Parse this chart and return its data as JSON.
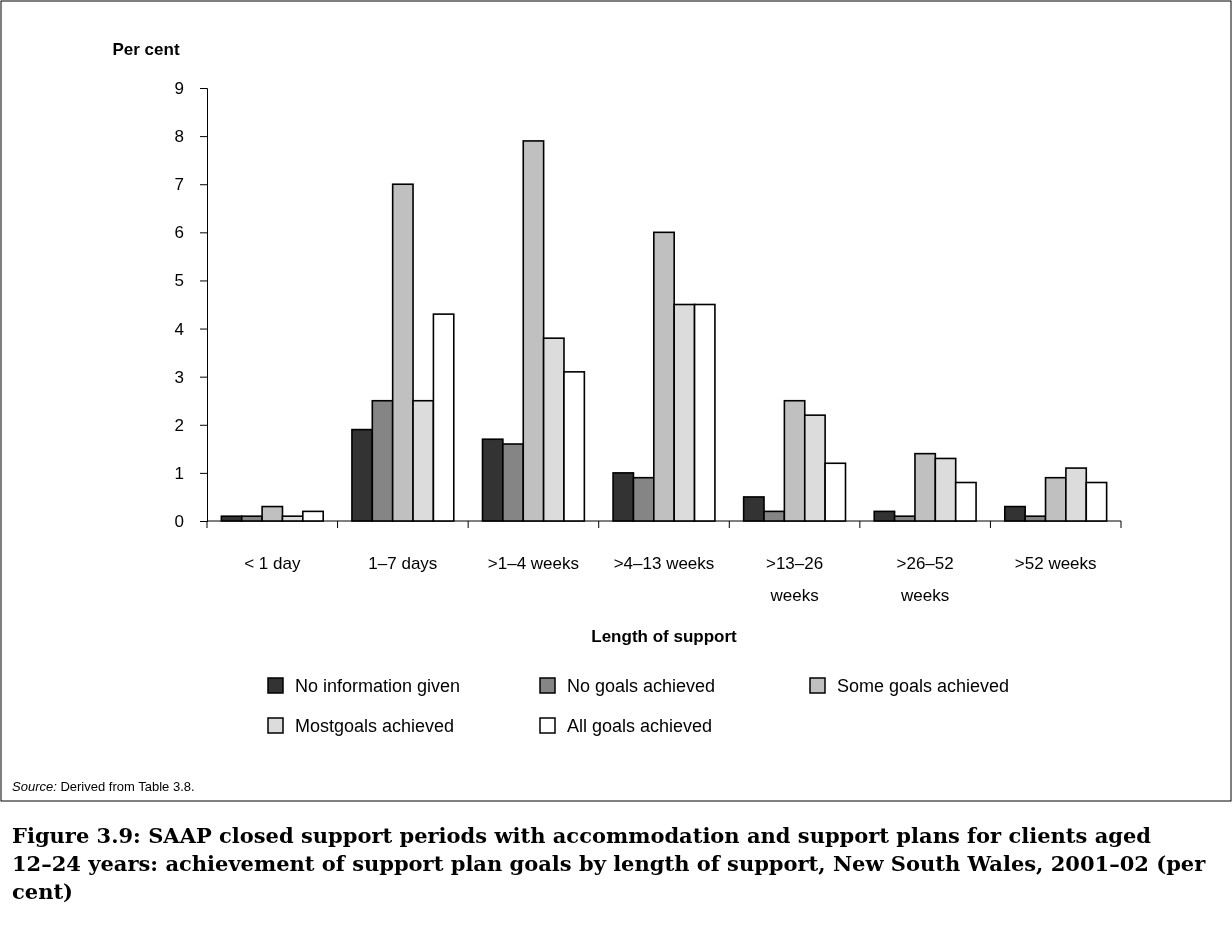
{
  "chart_data": {
    "type": "bar",
    "ylabel": "Per cent",
    "xlabel": "Length of support",
    "title": "Figure 3.9: SAAP closed support periods with accommodation and support plans for clients aged 12–24 years: achievement of support plan goals by length of support, New South Wales, 2001–02 (per cent)",
    "annotations": [
      "Source: Derived from Table 3.8."
    ],
    "categories": [
      "< 1 day",
      "1–7 days",
      ">1–4 weeks",
      ">4–13 weeks",
      ">13–26 weeks",
      ">26–52 weeks",
      ">52 weeks"
    ],
    "series": [
      {
        "name": "No information given",
        "color": "#333333",
        "values": [
          0.1,
          1.9,
          1.7,
          1.0,
          0.5,
          0.2,
          0.3
        ]
      },
      {
        "name": "No goals achieved",
        "color": "#858585",
        "values": [
          0.1,
          2.5,
          1.6,
          0.9,
          0.2,
          0.1,
          0.1
        ]
      },
      {
        "name": "Some goals achieved",
        "color": "#c0c0c0",
        "values": [
          0.3,
          7.0,
          7.9,
          6.0,
          2.5,
          1.4,
          0.9
        ]
      },
      {
        "name": "Mostgoals achieved",
        "color": "#dcdcdc",
        "values": [
          0.1,
          2.5,
          3.8,
          4.5,
          2.2,
          1.3,
          1.1
        ]
      },
      {
        "name": "All goals achieved",
        "color": "#ffffff",
        "values": [
          0.2,
          4.3,
          3.1,
          4.5,
          1.2,
          0.8,
          0.8
        ]
      }
    ],
    "ylim": [
      0,
      9
    ],
    "yticks": [
      0,
      1,
      2,
      3,
      4,
      5,
      6,
      7,
      8,
      9
    ],
    "grid": false,
    "legend": "bottom"
  }
}
